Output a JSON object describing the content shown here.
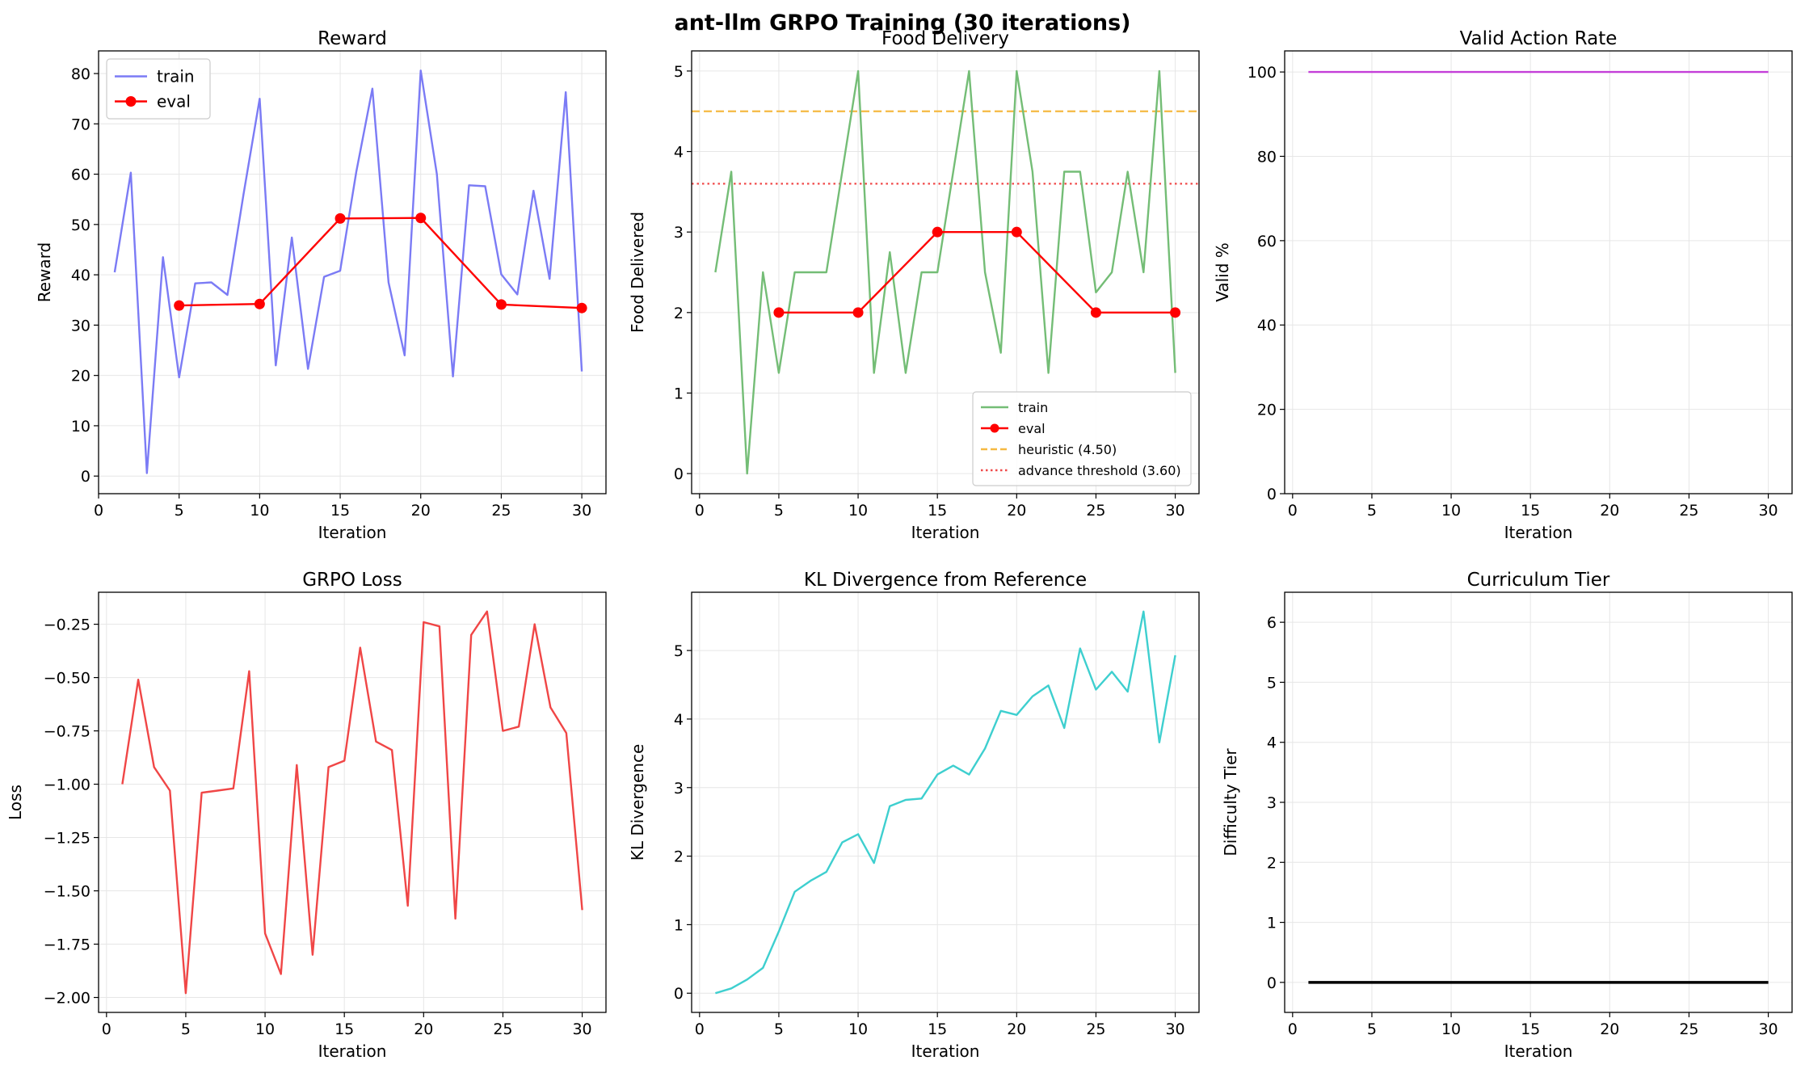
{
  "figure": {
    "title": "ant-llm GRPO Training (30 iterations)"
  },
  "chart_data": [
    {
      "id": "reward",
      "type": "line",
      "title": "Reward",
      "xlabel": "Iteration",
      "ylabel": "Reward",
      "xlim": [
        0,
        31.5
      ],
      "ylim": [
        -3.5,
        84.5
      ],
      "xticks": [
        0,
        5,
        10,
        15,
        20,
        25,
        30
      ],
      "yticks": [
        0,
        10,
        20,
        30,
        40,
        50,
        60,
        70,
        80
      ],
      "ytick_labels": [
        "0",
        "10",
        "20",
        "30",
        "40",
        "50",
        "60",
        "70",
        "80"
      ],
      "grid": true,
      "legend": "upper-left",
      "series": [
        {
          "name": "train",
          "color": "#7b7bf5",
          "marker": false,
          "x": [
            1,
            2,
            3,
            4,
            5,
            6,
            7,
            8,
            9,
            10,
            11,
            12,
            13,
            14,
            15,
            16,
            17,
            18,
            19,
            20,
            21,
            22,
            23,
            24,
            25,
            26,
            27,
            28,
            29,
            30
          ],
          "y": [
            40.5,
            60.3,
            0.6,
            43.5,
            19.6,
            38.3,
            38.5,
            36.0,
            56.0,
            75.0,
            22.0,
            47.4,
            21.3,
            39.6,
            40.8,
            60.5,
            77.0,
            38.5,
            24.0,
            80.6,
            60.0,
            19.8,
            57.8,
            57.6,
            40.1,
            36.1,
            56.7,
            39.2,
            76.3,
            20.8
          ]
        },
        {
          "name": "eval",
          "color": "#ff0000",
          "marker": true,
          "x": [
            5,
            10,
            15,
            20,
            25,
            30
          ],
          "y": [
            33.9,
            34.2,
            51.2,
            51.3,
            34.1,
            33.4
          ]
        }
      ]
    },
    {
      "id": "food",
      "type": "line",
      "title": "Food Delivery",
      "xlabel": "Iteration",
      "ylabel": "Food Delivered",
      "xlim": [
        -0.5,
        31.5
      ],
      "ylim": [
        -0.25,
        5.25
      ],
      "xticks": [
        0,
        5,
        10,
        15,
        20,
        25,
        30
      ],
      "yticks": [
        0,
        1,
        2,
        3,
        4,
        5
      ],
      "ytick_labels": [
        "0",
        "1",
        "2",
        "3",
        "4",
        "5"
      ],
      "grid": true,
      "legend": "lower-right",
      "series": [
        {
          "name": "train",
          "color": "#74bd76",
          "marker": false,
          "x": [
            1,
            2,
            3,
            4,
            5,
            6,
            7,
            8,
            9,
            10,
            11,
            12,
            13,
            14,
            15,
            16,
            17,
            18,
            19,
            20,
            21,
            22,
            23,
            24,
            25,
            26,
            27,
            28,
            29,
            30
          ],
          "y": [
            2.5,
            3.75,
            0,
            2.5,
            1.25,
            2.5,
            2.5,
            2.5,
            3.75,
            5,
            1.25,
            2.75,
            1.25,
            2.5,
            2.5,
            3.75,
            5,
            2.5,
            1.5,
            5,
            3.75,
            1.25,
            3.75,
            3.75,
            2.25,
            2.5,
            3.75,
            2.5,
            5,
            1.25
          ]
        },
        {
          "name": "eval",
          "color": "#ff0000",
          "marker": true,
          "x": [
            5,
            10,
            15,
            20,
            25,
            30
          ],
          "y": [
            2,
            2,
            3,
            3,
            2,
            2
          ]
        }
      ],
      "reference_lines": [
        {
          "name": "heuristic (4.50)",
          "value": 4.5,
          "color": "#f5b942",
          "dash": "dashed"
        },
        {
          "name": "advance threshold (3.60)",
          "value": 3.6,
          "color": "#f04a4a",
          "dash": "dotted"
        }
      ]
    },
    {
      "id": "valid",
      "type": "line",
      "title": "Valid Action Rate",
      "xlabel": "Iteration",
      "ylabel": "Valid %",
      "xlim": [
        -0.5,
        31.5
      ],
      "ylim": [
        0,
        105
      ],
      "xticks": [
        0,
        5,
        10,
        15,
        20,
        25,
        30
      ],
      "yticks": [
        0,
        20,
        40,
        60,
        80,
        100
      ],
      "ytick_labels": [
        "0",
        "20",
        "40",
        "60",
        "80",
        "100"
      ],
      "grid": true,
      "series": [
        {
          "name": "",
          "color": "#c43fd8",
          "marker": false,
          "x": [
            1,
            2,
            3,
            4,
            5,
            6,
            7,
            8,
            9,
            10,
            11,
            12,
            13,
            14,
            15,
            16,
            17,
            18,
            19,
            20,
            21,
            22,
            23,
            24,
            25,
            26,
            27,
            28,
            29,
            30
          ],
          "y": [
            100,
            100,
            100,
            100,
            100,
            100,
            100,
            100,
            100,
            100,
            100,
            100,
            100,
            100,
            100,
            100,
            100,
            100,
            100,
            100,
            100,
            100,
            100,
            100,
            100,
            100,
            100,
            100,
            100,
            100
          ]
        }
      ]
    },
    {
      "id": "loss",
      "type": "line",
      "title": "GRPO Loss",
      "xlabel": "Iteration",
      "ylabel": "Loss",
      "xlim": [
        -0.5,
        31.5
      ],
      "ylim": [
        -2.07,
        -0.1
      ],
      "xticks": [
        0,
        5,
        10,
        15,
        20,
        25,
        30
      ],
      "yticks": [
        -2.0,
        -1.75,
        -1.5,
        -1.25,
        -1.0,
        -0.75,
        -0.5,
        -0.25
      ],
      "ytick_labels": [
        "−2.00",
        "−1.75",
        "−1.50",
        "−1.25",
        "−1.00",
        "−0.75",
        "−0.50",
        "−0.25"
      ],
      "grid": true,
      "series": [
        {
          "name": "",
          "color": "#f04646",
          "marker": false,
          "x": [
            1,
            2,
            3,
            4,
            5,
            6,
            7,
            8,
            9,
            10,
            11,
            12,
            13,
            14,
            15,
            16,
            17,
            18,
            19,
            20,
            21,
            22,
            23,
            24,
            25,
            26,
            27,
            28,
            29,
            30
          ],
          "y": [
            -1.0,
            -0.51,
            -0.92,
            -1.03,
            -1.98,
            -1.04,
            -1.03,
            -1.02,
            -0.47,
            -1.7,
            -1.89,
            -0.91,
            -1.8,
            -0.92,
            -0.89,
            -0.36,
            -0.8,
            -0.84,
            -1.57,
            -0.24,
            -0.26,
            -1.63,
            -0.3,
            -0.19,
            -0.75,
            -0.73,
            -0.25,
            -0.64,
            -0.76,
            -1.59
          ]
        }
      ]
    },
    {
      "id": "kl",
      "type": "line",
      "title": "KL Divergence from Reference",
      "xlabel": "Iteration",
      "ylabel": "KL Divergence",
      "xlim": [
        -0.5,
        31.5
      ],
      "ylim": [
        -0.28,
        5.85
      ],
      "xticks": [
        0,
        5,
        10,
        15,
        20,
        25,
        30
      ],
      "yticks": [
        0,
        1,
        2,
        3,
        4,
        5
      ],
      "ytick_labels": [
        "0",
        "1",
        "2",
        "3",
        "4",
        "5"
      ],
      "grid": true,
      "series": [
        {
          "name": "",
          "color": "#3ecfcf",
          "marker": false,
          "x": [
            1,
            2,
            3,
            4,
            5,
            6,
            7,
            8,
            9,
            10,
            11,
            12,
            13,
            14,
            15,
            16,
            17,
            18,
            19,
            20,
            21,
            22,
            23,
            24,
            25,
            26,
            27,
            28,
            29,
            30
          ],
          "y": [
            0.0,
            0.07,
            0.2,
            0.37,
            0.9,
            1.48,
            1.64,
            1.77,
            2.2,
            2.32,
            1.9,
            2.73,
            2.82,
            2.84,
            3.19,
            3.32,
            3.19,
            3.57,
            4.12,
            4.06,
            4.33,
            4.49,
            3.87,
            5.03,
            4.43,
            4.69,
            4.4,
            5.57,
            3.66,
            4.93
          ]
        }
      ]
    },
    {
      "id": "tier",
      "type": "line",
      "title": "Curriculum Tier",
      "xlabel": "Iteration",
      "ylabel": "Difficulty Tier",
      "xlim": [
        -0.5,
        31.5
      ],
      "ylim": [
        -0.5,
        6.5
      ],
      "xticks": [
        0,
        5,
        10,
        15,
        20,
        25,
        30
      ],
      "yticks": [
        0,
        1,
        2,
        3,
        4,
        5,
        6
      ],
      "ytick_labels": [
        "0",
        "1",
        "2",
        "3",
        "4",
        "5",
        "6"
      ],
      "grid": true,
      "series": [
        {
          "name": "",
          "color": "#000000",
          "marker": false,
          "thick": true,
          "x": [
            1,
            2,
            3,
            4,
            5,
            6,
            7,
            8,
            9,
            10,
            11,
            12,
            13,
            14,
            15,
            16,
            17,
            18,
            19,
            20,
            21,
            22,
            23,
            24,
            25,
            26,
            27,
            28,
            29,
            30
          ],
          "y": [
            0,
            0,
            0,
            0,
            0,
            0,
            0,
            0,
            0,
            0,
            0,
            0,
            0,
            0,
            0,
            0,
            0,
            0,
            0,
            0,
            0,
            0,
            0,
            0,
            0,
            0,
            0,
            0,
            0,
            0
          ]
        }
      ]
    }
  ]
}
